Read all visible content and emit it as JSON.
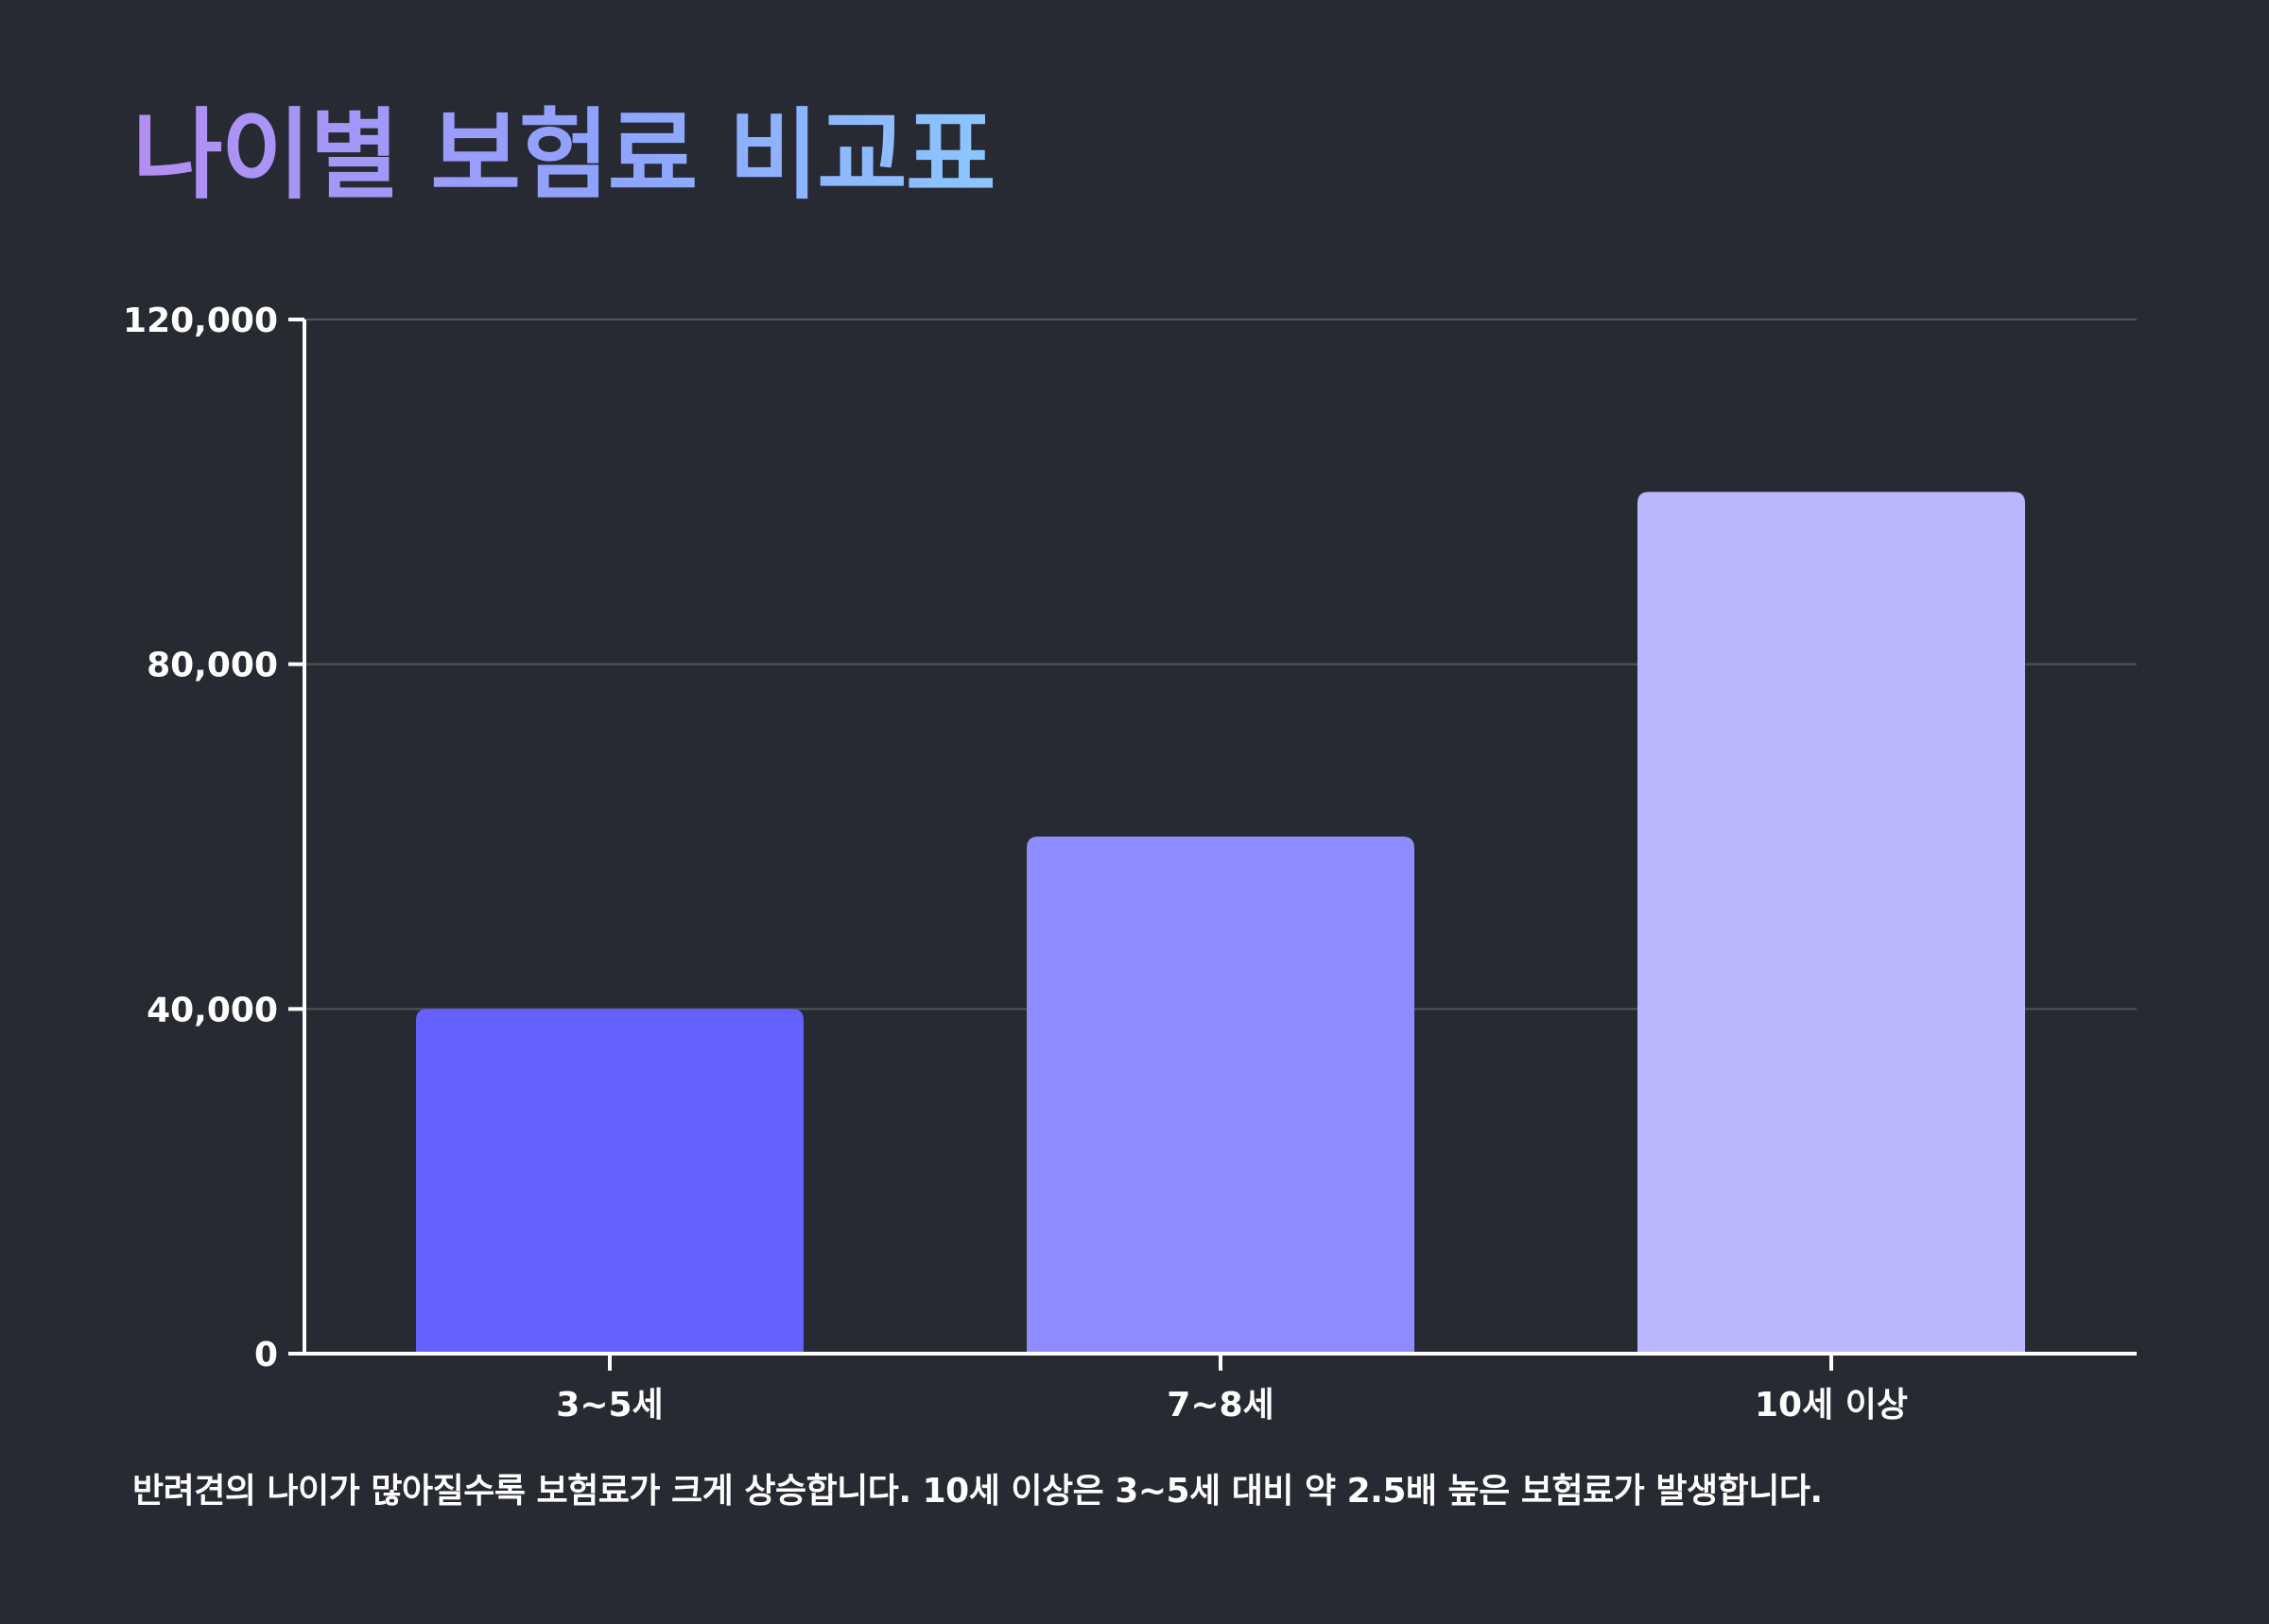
{
  "title": "나이별 보험료 비교표",
  "caption": "반려견의 나이가 많아질수록 보험료가 크게 상승합니다. 10세 이상은 3~5세 대비 약 2.5배 높은 보험료가 발생합니다.",
  "colors": {
    "background": "#272a32",
    "bar_3_5": "#6461ff",
    "bar_7_8": "#8f8cff",
    "bar_10_plus": "#bab7ff",
    "grid": "#52555c",
    "axis": "#ffffff"
  },
  "chart_data": {
    "type": "bar",
    "categories": [
      "3~5세",
      "7~8세",
      "10세 이상"
    ],
    "values": [
      40000,
      60000,
      100000
    ],
    "title": "",
    "xlabel": "",
    "ylabel": "",
    "ylim": [
      0,
      120000
    ],
    "yticks": [
      0,
      40000,
      80000,
      120000
    ],
    "ytick_labels": [
      "0",
      "40,000",
      "80,000",
      "120,000"
    ],
    "bar_colors": [
      "#6461ff",
      "#8f8cff",
      "#bab7ff"
    ],
    "grid": true,
    "legend": "none"
  }
}
